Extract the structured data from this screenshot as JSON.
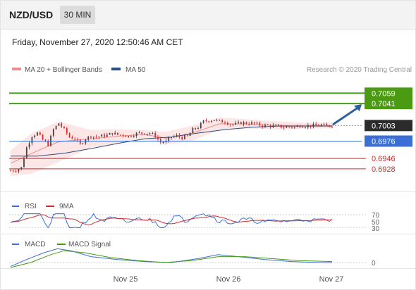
{
  "header": {
    "pair": "NZD/USD",
    "timeframe": "30 MIN",
    "datetime": "Friday, November 27, 2020 12:50:46 AM CET"
  },
  "legend": {
    "ma20": "MA 20 + Bollinger Bands",
    "ma50": "MA 50",
    "credit": "Research © 2020 Trading Central"
  },
  "colors": {
    "bullish": "#444444",
    "bearish": "#d02a2a",
    "ma20": "#f08a8a",
    "ma50": "#2a4f84",
    "bands_fill": "#fde3e3",
    "target": "#4a9a12",
    "pivot": "#3b6fd6",
    "support": "#d02a2a",
    "current": "#2b2b2b",
    "arrow": "#2e5f9e",
    "rsi": "#3b6fd6",
    "rsi_ma": "#d02a2a",
    "macd": "#3b6fd6",
    "macd_signal": "#4a9a12"
  },
  "chart_data": [
    {
      "type": "candlestick",
      "title": "NZD/USD",
      "timeframe": "30 MIN",
      "x_tick_labels": [
        "Nov 25",
        "Nov 26",
        "Nov 27"
      ],
      "ylim": [
        0.6912,
        0.7085
      ],
      "levels": [
        {
          "label": "0.7059",
          "value": 0.7059,
          "kind": "target"
        },
        {
          "label": "0.7041",
          "value": 0.7041,
          "kind": "target"
        },
        {
          "label": "0.7003",
          "value": 0.7003,
          "kind": "current"
        },
        {
          "label": "0.6976",
          "value": 0.6976,
          "kind": "pivot"
        },
        {
          "label": "0.6946",
          "value": 0.6946,
          "kind": "support"
        },
        {
          "label": "0.6928",
          "value": 0.6928,
          "kind": "support"
        }
      ],
      "price_path": [
        [
          0,
          0.6925
        ],
        [
          4,
          0.6926
        ],
        [
          8,
          0.693
        ],
        [
          12,
          0.6965
        ],
        [
          16,
          0.6985
        ],
        [
          20,
          0.699
        ],
        [
          24,
          0.6978
        ],
        [
          28,
          0.697
        ],
        [
          32,
          0.6996
        ],
        [
          36,
          0.7007
        ],
        [
          40,
          0.6996
        ],
        [
          44,
          0.6983
        ],
        [
          48,
          0.698
        ],
        [
          52,
          0.697
        ],
        [
          56,
          0.698
        ],
        [
          60,
          0.6985
        ],
        [
          64,
          0.6983
        ],
        [
          68,
          0.6985
        ],
        [
          72,
          0.6986
        ],
        [
          76,
          0.699
        ],
        [
          80,
          0.6987
        ],
        [
          84,
          0.6987
        ],
        [
          88,
          0.6984
        ],
        [
          92,
          0.6988
        ],
        [
          96,
          0.699
        ],
        [
          100,
          0.699
        ],
        [
          104,
          0.699
        ],
        [
          108,
          0.6985
        ],
        [
          112,
          0.6974
        ],
        [
          116,
          0.6975
        ],
        [
          120,
          0.6983
        ],
        [
          124,
          0.6985
        ],
        [
          128,
          0.6982
        ],
        [
          132,
          0.6984
        ],
        [
          136,
          0.6996
        ],
        [
          140,
          0.7
        ],
        [
          144,
          0.701
        ],
        [
          148,
          0.7012
        ],
        [
          152,
          0.7013
        ],
        [
          156,
          0.701
        ],
        [
          160,
          0.701
        ],
        [
          164,
          0.7005
        ],
        [
          168,
          0.7005
        ],
        [
          172,
          0.7008
        ],
        [
          176,
          0.7007
        ],
        [
          180,
          0.7007
        ],
        [
          184,
          0.7005
        ],
        [
          188,
          0.7003
        ],
        [
          192,
          0.7003
        ],
        [
          196,
          0.7002
        ],
        [
          200,
          0.7002
        ],
        [
          204,
          0.7
        ],
        [
          208,
          0.7001
        ],
        [
          212,
          0.7
        ],
        [
          216,
          0.7003
        ],
        [
          220,
          0.7002
        ],
        [
          224,
          0.7003
        ],
        [
          228,
          0.7003
        ],
        [
          232,
          0.7004
        ],
        [
          236,
          0.7002
        ],
        [
          240,
          0.7003
        ]
      ],
      "ma50_path": [
        [
          0,
          0.695
        ],
        [
          20,
          0.695
        ],
        [
          40,
          0.6955
        ],
        [
          60,
          0.6963
        ],
        [
          80,
          0.6972
        ],
        [
          100,
          0.698
        ],
        [
          120,
          0.6983
        ],
        [
          140,
          0.699
        ],
        [
          160,
          0.6996
        ],
        [
          180,
          0.7
        ],
        [
          200,
          0.7002
        ],
        [
          220,
          0.7002
        ],
        [
          240,
          0.7002
        ]
      ],
      "band_upper": [
        [
          0,
          0.696
        ],
        [
          16,
          0.699
        ],
        [
          36,
          0.701
        ],
        [
          60,
          0.6995
        ],
        [
          80,
          0.6997
        ],
        [
          100,
          0.6995
        ],
        [
          116,
          0.6992
        ],
        [
          136,
          0.7003
        ],
        [
          156,
          0.7017
        ],
        [
          180,
          0.7013
        ],
        [
          200,
          0.701
        ],
        [
          220,
          0.7008
        ],
        [
          240,
          0.7008
        ]
      ],
      "band_lower": [
        [
          0,
          0.6915
        ],
        [
          16,
          0.692
        ],
        [
          36,
          0.694
        ],
        [
          60,
          0.6965
        ],
        [
          80,
          0.6972
        ],
        [
          100,
          0.698
        ],
        [
          116,
          0.697
        ],
        [
          136,
          0.6977
        ],
        [
          156,
          0.6995
        ],
        [
          180,
          0.6998
        ],
        [
          200,
          0.6996
        ],
        [
          220,
          0.6998
        ],
        [
          240,
          0.6998
        ]
      ],
      "forecast_arrow": {
        "from": 0.7003,
        "to": 0.7041
      }
    },
    {
      "type": "line",
      "title": "RSI",
      "series": [
        {
          "name": "RSI"
        },
        {
          "name": "9MA"
        }
      ],
      "y_tick_labels": [
        "70",
        "50",
        "30"
      ],
      "ylim": [
        20,
        80
      ]
    },
    {
      "type": "line",
      "title": "MACD",
      "series": [
        {
          "name": "MACD"
        },
        {
          "name": "MACD Signal"
        }
      ],
      "y_tick_labels": [
        "0"
      ],
      "macd_path": [
        [
          0,
          -0.0004
        ],
        [
          10,
          0.0002
        ],
        [
          25,
          0.001
        ],
        [
          35,
          0.0014
        ],
        [
          45,
          0.0012
        ],
        [
          60,
          0.0006
        ],
        [
          80,
          0.0003
        ],
        [
          100,
          0.0001
        ],
        [
          120,
          0.0
        ],
        [
          140,
          0.0004
        ],
        [
          155,
          0.0008
        ],
        [
          170,
          0.0006
        ],
        [
          190,
          0.0003
        ],
        [
          210,
          0.0001
        ],
        [
          230,
          0.0
        ],
        [
          240,
          0.0
        ]
      ],
      "signal_path": [
        [
          0,
          -0.0005
        ],
        [
          15,
          0.0
        ],
        [
          30,
          0.0008
        ],
        [
          40,
          0.0012
        ],
        [
          55,
          0.001
        ],
        [
          75,
          0.0005
        ],
        [
          95,
          0.0002
        ],
        [
          115,
          0.0
        ],
        [
          135,
          0.0002
        ],
        [
          155,
          0.0006
        ],
        [
          175,
          0.0006
        ],
        [
          195,
          0.0004
        ],
        [
          215,
          0.0002
        ],
        [
          240,
          0.0001
        ]
      ]
    }
  ]
}
